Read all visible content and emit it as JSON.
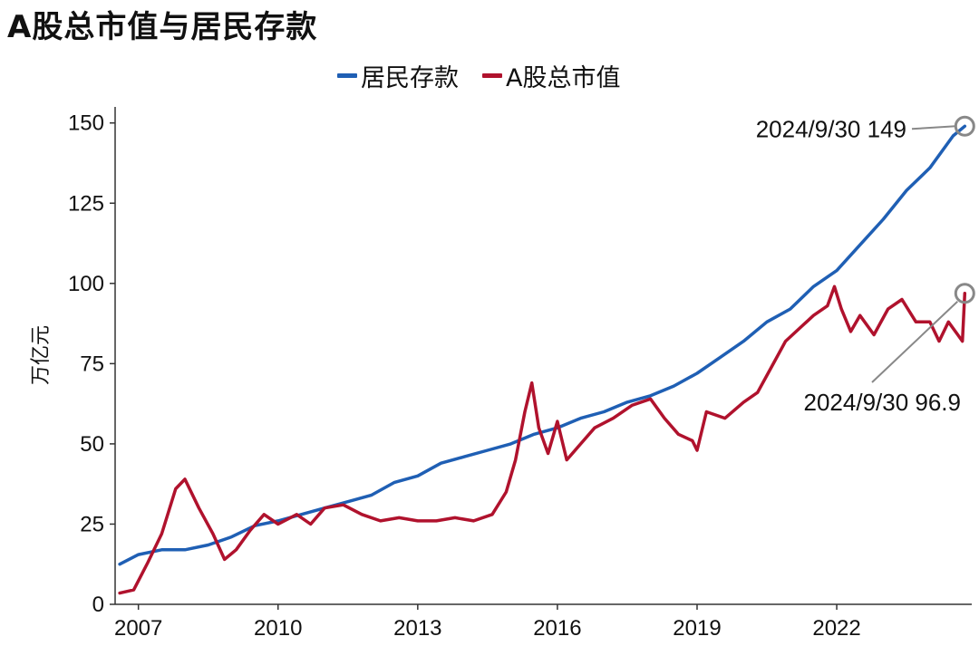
{
  "title": "A股总市值与居民存款",
  "ylabel": "万亿元",
  "legend": [
    {
      "name": "居民存款",
      "color": "#1f5fb4"
    },
    {
      "name": "A股总市值",
      "color": "#b0122d"
    }
  ],
  "annotations": [
    {
      "text": "2024/9/30 149",
      "series": "居民存款"
    },
    {
      "text": "2024/9/30 96.9",
      "series": "A股总市值"
    }
  ],
  "chart_data": {
    "type": "line",
    "title": "A股总市值与居民存款",
    "xlabel": "",
    "ylabel": "万亿元",
    "xlim": [
      2006.5,
      2024.9
    ],
    "ylim": [
      0,
      155
    ],
    "yticks": [
      0,
      25,
      50,
      75,
      100,
      125,
      150
    ],
    "xticks": [
      "2007",
      "2010",
      "2013",
      "2016",
      "2019",
      "2022"
    ],
    "grid": false,
    "legend_position": "top",
    "series": [
      {
        "name": "居民存款",
        "color": "#1f5fb4",
        "x": [
          2006.6,
          2007.0,
          2007.5,
          2008.0,
          2008.5,
          2009.0,
          2009.5,
          2010.0,
          2010.5,
          2011.0,
          2011.5,
          2012.0,
          2012.5,
          2013.0,
          2013.5,
          2014.0,
          2014.5,
          2015.0,
          2015.5,
          2016.0,
          2016.5,
          2017.0,
          2017.5,
          2018.0,
          2018.5,
          2019.0,
          2019.5,
          2020.0,
          2020.5,
          2021.0,
          2021.5,
          2022.0,
          2022.5,
          2023.0,
          2023.5,
          2024.0,
          2024.5,
          2024.75
        ],
        "values": [
          12.5,
          15.5,
          17,
          17,
          18.5,
          21,
          24.5,
          26,
          28,
          30,
          32,
          34,
          38,
          40,
          44,
          46,
          48,
          50,
          53,
          55,
          58,
          60,
          63,
          65,
          68,
          72,
          77,
          82,
          88,
          92,
          99,
          104,
          112,
          120,
          129,
          136,
          146,
          149
        ]
      },
      {
        "name": "A股总市值",
        "color": "#b0122d",
        "x": [
          2006.6,
          2006.9,
          2007.2,
          2007.5,
          2007.8,
          2008.0,
          2008.3,
          2008.6,
          2008.85,
          2009.1,
          2009.4,
          2009.7,
          2010.0,
          2010.4,
          2010.7,
          2011.0,
          2011.4,
          2011.8,
          2012.2,
          2012.6,
          2013.0,
          2013.4,
          2013.8,
          2014.2,
          2014.6,
          2014.9,
          2015.1,
          2015.3,
          2015.45,
          2015.6,
          2015.8,
          2016.0,
          2016.2,
          2016.5,
          2016.8,
          2017.2,
          2017.6,
          2018.0,
          2018.3,
          2018.6,
          2018.9,
          2019.0,
          2019.2,
          2019.6,
          2020.0,
          2020.3,
          2020.6,
          2020.9,
          2021.2,
          2021.5,
          2021.8,
          2021.95,
          2022.1,
          2022.3,
          2022.5,
          2022.8,
          2023.1,
          2023.4,
          2023.7,
          2024.0,
          2024.2,
          2024.4,
          2024.6,
          2024.7,
          2024.75
        ],
        "values": [
          3.5,
          4.5,
          13,
          22,
          36,
          39,
          30,
          22,
          14,
          17,
          23,
          28,
          25,
          28,
          25,
          30,
          31,
          28,
          26,
          27,
          26,
          26,
          27,
          26,
          28,
          35,
          45,
          60,
          69,
          55,
          47,
          57,
          45,
          50,
          55,
          58,
          62,
          64,
          58,
          53,
          51,
          48,
          60,
          58,
          63,
          66,
          74,
          82,
          86,
          90,
          93,
          99,
          92,
          85,
          90,
          84,
          92,
          95,
          88,
          88,
          82,
          88,
          84,
          82,
          96.9
        ]
      }
    ]
  }
}
